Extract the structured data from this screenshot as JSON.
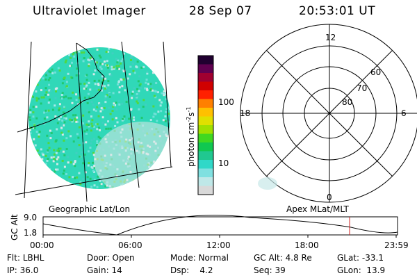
{
  "header": {
    "instrument": "Ultraviolet Imager",
    "date": "28 Sep 07",
    "time": "20:53:01 UT"
  },
  "colorbar": {
    "label": "photon cm-2s-1",
    "label_base": "photon cm",
    "label_exp1": "-2",
    "label_mid": "s",
    "label_exp2": "-1",
    "ticks": [
      {
        "label": "100",
        "value": 100
      },
      {
        "label": "10",
        "value": 10
      }
    ],
    "colors": [
      "#d9d9d9",
      "#bfe8e8",
      "#7fe0e0",
      "#30d8c8",
      "#20c890",
      "#10c850",
      "#40d820",
      "#a0e000",
      "#e0e000",
      "#ffc000",
      "#ff8000",
      "#ff2000",
      "#d00000",
      "#a00030",
      "#600050",
      "#200030"
    ]
  },
  "left_panel": {
    "label": "Geographic Lat/Lon"
  },
  "polar": {
    "label": "Apex MLat/MLT",
    "lat_labels": [
      "60",
      "70",
      "80"
    ],
    "mlt_labels": {
      "top": "12",
      "left": "18",
      "right": "6",
      "bottom": "0"
    }
  },
  "gc_alt_plot": {
    "ylabel": "GC Alt",
    "y_ticks": [
      "9.0",
      "1.8"
    ],
    "x_ticks": [
      "00:00",
      "06:00",
      "12:00",
      "18:00",
      "23:59"
    ],
    "current_time_marker": "20:53"
  },
  "info": {
    "flt_label": "Flt:",
    "flt": "LBHL",
    "ip_label": "IP:",
    "ip": "36.0",
    "door_label": "Door:",
    "door": "Open",
    "gain_label": "Gain:",
    "gain": "14",
    "mode_label": "Mode:",
    "mode": "Normal",
    "dsp_label": "Dsp:",
    "dsp": "4.2",
    "gcalt_label": "GC Alt:",
    "gcalt": "4.8 Re",
    "seq_label": "Seq:",
    "seq": "39",
    "glat_label": "GLat:",
    "glat": "-33.1",
    "glon_label": "GLon:",
    "glon": "13.9"
  }
}
